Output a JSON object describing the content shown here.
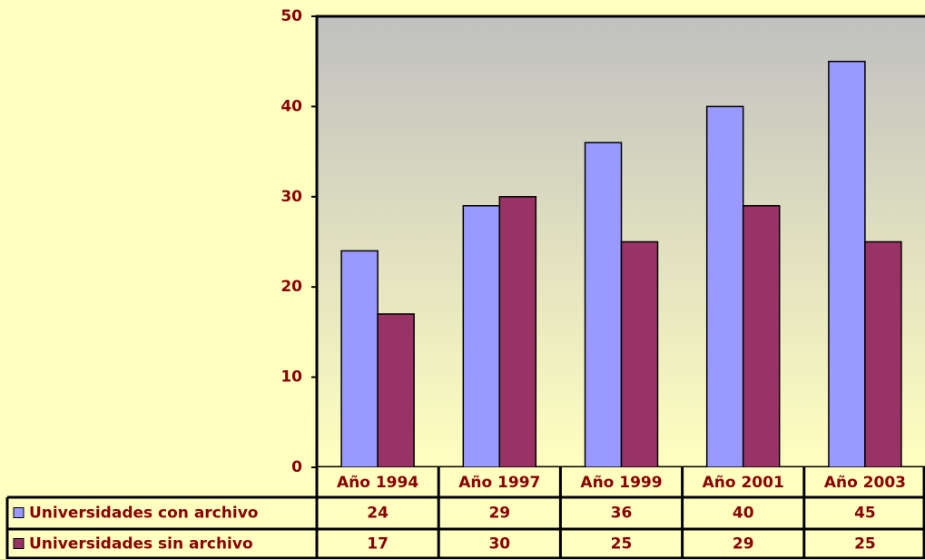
{
  "chart_data": {
    "type": "bar",
    "categories": [
      "Año 1994",
      "Año 1997",
      "Año 1999",
      "Año 2001",
      "Año 2003"
    ],
    "series": [
      {
        "name": "Universidades con archivo",
        "color": "#9999ff",
        "values": [
          24,
          29,
          36,
          40,
          45
        ]
      },
      {
        "name": "Universidades sin archivo",
        "color": "#993366",
        "values": [
          17,
          30,
          25,
          29,
          25
        ]
      }
    ],
    "ylim": [
      0,
      50
    ],
    "yticks": [
      0,
      10,
      20,
      30,
      40,
      50
    ],
    "grid": false
  }
}
